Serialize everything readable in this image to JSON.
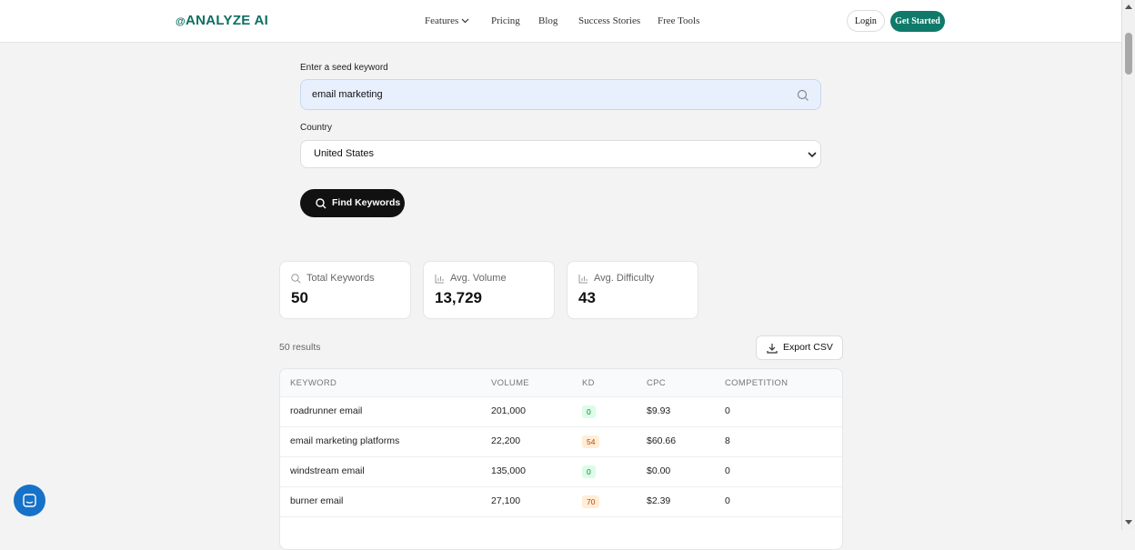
{
  "nav": {
    "logo": "ANALYZE AI",
    "links": [
      "Features",
      "Pricing",
      "Blog",
      "Success Stories",
      "Free Tools"
    ],
    "login": "Login",
    "cta": "Get Started"
  },
  "form": {
    "keyword_label": "Enter a seed keyword",
    "keyword_value": "email marketing",
    "country_label": "Country",
    "country_value": "United States",
    "button": "Find Keywords"
  },
  "stats": [
    {
      "label": "Total Keywords",
      "value": "50"
    },
    {
      "label": "Avg. Volume",
      "value": "13,729"
    },
    {
      "label": "Avg. Difficulty",
      "value": "43"
    }
  ],
  "results": {
    "count": "50 results",
    "export": "Export CSV"
  },
  "table": {
    "headers": [
      "KEYWORD",
      "VOLUME",
      "KD",
      "CPC",
      "COMPETITION"
    ],
    "rows": [
      [
        "roadrunner email",
        "201,000",
        0,
        "$9.93",
        0
      ],
      [
        "email marketing platforms",
        "22,200",
        54,
        "$60.66",
        8
      ],
      [
        "windstream email",
        "135,000",
        0,
        "$0.00",
        0
      ],
      [
        "burner email",
        "27,100",
        70,
        "$2.39",
        0
      ]
    ]
  }
}
